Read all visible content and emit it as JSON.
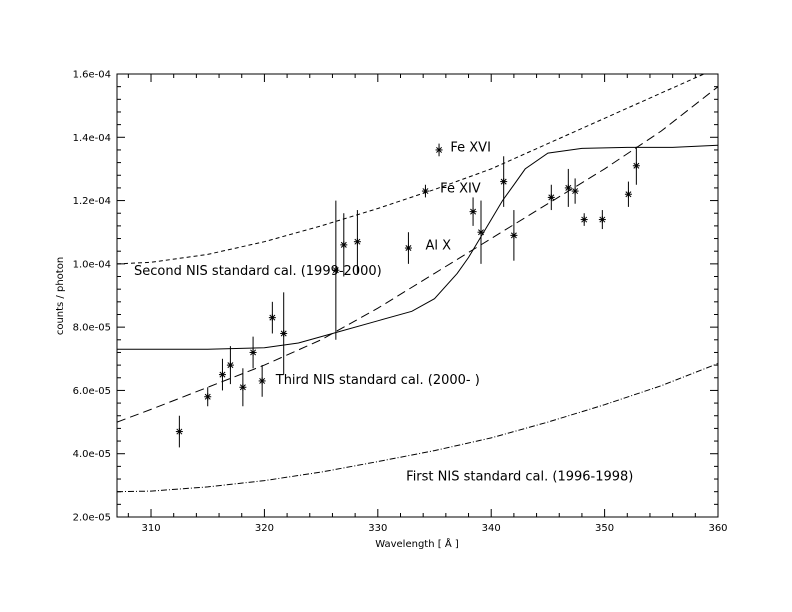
{
  "chart_data": {
    "type": "scatter",
    "xlabel": "Wavelength [ Å ]",
    "ylabel": "counts / photon",
    "xlim": [
      307,
      360
    ],
    "ylim": [
      2e-05,
      0.00016
    ],
    "xticks": [
      310,
      320,
      330,
      340,
      350,
      360
    ],
    "xtick_labels": [
      "310",
      "320",
      "330",
      "340",
      "350",
      "360"
    ],
    "yticks": [
      2e-05,
      4e-05,
      6e-05,
      8e-05,
      0.0001,
      0.00012,
      0.00014,
      0.00016
    ],
    "ytick_labels": [
      "2.0e-05",
      "4.0e-05",
      "6.0e-05",
      "8.0e-05",
      "1.0e-04",
      "1.2e-04",
      "1.4e-04",
      "1.6e-04"
    ],
    "grid": false,
    "measurements": [
      {
        "x": 312.5,
        "y": 4.7e-05,
        "err": 5e-06
      },
      {
        "x": 315.0,
        "y": 5.8e-05,
        "err": 3e-06
      },
      {
        "x": 316.3,
        "y": 6.5e-05,
        "err": 5e-06
      },
      {
        "x": 317.0,
        "y": 6.8e-05,
        "err": 6e-06
      },
      {
        "x": 318.1,
        "y": 6.1e-05,
        "err": 6e-06
      },
      {
        "x": 319.0,
        "y": 7.2e-05,
        "err": 5e-06
      },
      {
        "x": 319.8,
        "y": 6.3e-05,
        "err": 5e-06
      },
      {
        "x": 320.7,
        "y": 8.3e-05,
        "err": 5e-06
      },
      {
        "x": 321.7,
        "y": 7.8e-05,
        "err": 1.3e-05
      },
      {
        "x": 326.3,
        "y": 9.8e-05,
        "err": 2.2e-05
      },
      {
        "x": 327.0,
        "y": 0.000106,
        "err": 1e-05
      },
      {
        "x": 328.2,
        "y": 0.000107,
        "err": 1e-05
      },
      {
        "x": 332.7,
        "y": 0.000105,
        "err": 5e-06
      },
      {
        "x": 334.2,
        "y": 0.000123,
        "err": 2e-06
      },
      {
        "x": 335.4,
        "y": 0.000136,
        "err": 2e-06
      },
      {
        "x": 338.4,
        "y": 0.0001165,
        "err": 4.5e-06
      },
      {
        "x": 339.1,
        "y": 0.00011,
        "err": 1e-05
      },
      {
        "x": 341.1,
        "y": 0.000126,
        "err": 8e-06
      },
      {
        "x": 342.0,
        "y": 0.000109,
        "err": 8e-06
      },
      {
        "x": 345.3,
        "y": 0.000121,
        "err": 4e-06
      },
      {
        "x": 346.8,
        "y": 0.000124,
        "err": 6e-06
      },
      {
        "x": 347.4,
        "y": 0.000123,
        "err": 4e-06
      },
      {
        "x": 348.2,
        "y": 0.000114,
        "err": 2e-06
      },
      {
        "x": 349.8,
        "y": 0.000114,
        "err": 3e-06
      },
      {
        "x": 352.1,
        "y": 0.000122,
        "err": 4e-06
      },
      {
        "x": 352.8,
        "y": 0.000131,
        "err": 6e-06
      }
    ],
    "curves": [
      {
        "name": "Second NIS standard cal. (1999-2000)",
        "dash": "short-dash",
        "x": [
          307,
          310,
          315,
          320,
          325,
          330,
          335,
          340,
          345,
          350,
          355,
          360
        ],
        "y": [
          0.0001,
          0.0001005,
          0.000103,
          0.000107,
          0.000112,
          0.0001175,
          0.0001235,
          0.00013,
          0.000138,
          0.000146,
          0.000154,
          0.000162
        ]
      },
      {
        "name": "Third NIS standard cal. (2000- )",
        "dash": "long-dash",
        "x": [
          307,
          310,
          315,
          320,
          325,
          330,
          335,
          340,
          345,
          350,
          355,
          360
        ],
        "y": [
          5e-05,
          5.4e-05,
          6.1e-05,
          6.8e-05,
          7.6e-05,
          8.6e-05,
          9.7e-05,
          0.000108,
          0.000119,
          0.00013,
          0.000142,
          0.000156
        ]
      },
      {
        "name": "First NIS standard cal. (1996-1998)",
        "dash": "dash-dot",
        "x": [
          307,
          310,
          315,
          320,
          325,
          330,
          335,
          340,
          345,
          350,
          355,
          360
        ],
        "y": [
          2.8e-05,
          2.82e-05,
          2.95e-05,
          3.15e-05,
          3.42e-05,
          3.75e-05,
          4.1e-05,
          4.5e-05,
          5e-05,
          5.55e-05,
          6.15e-05,
          6.85e-05
        ]
      },
      {
        "name": "",
        "dash": "solid",
        "x": [
          307,
          315,
          320,
          323,
          326,
          330,
          333,
          335,
          337,
          338,
          339,
          340,
          341,
          342,
          343,
          345,
          348,
          352,
          356,
          360
        ],
        "y": [
          7.3e-05,
          7.3e-05,
          7.35e-05,
          7.5e-05,
          7.8e-05,
          8.2e-05,
          8.5e-05,
          8.9e-05,
          9.7e-05,
          0.000102,
          0.000108,
          0.000114,
          0.00012,
          0.000125,
          0.00013,
          0.000135,
          0.0001365,
          0.0001368,
          0.0001368,
          0.0001375
        ]
      }
    ],
    "annotations": [
      {
        "text": "Fe XVI",
        "x": 336.4,
        "y": 0.0001355
      },
      {
        "text": "Fe XIV",
        "x": 335.5,
        "y": 0.0001225
      },
      {
        "text": "Al X",
        "x": 334.2,
        "y": 0.0001045
      },
      {
        "text": "Second NIS standard cal. (1999-2000)",
        "x": 308.5,
        "y": 9.65e-05
      },
      {
        "text": "Third NIS standard cal. (2000- )",
        "x": 321.0,
        "y": 6.2e-05
      },
      {
        "text": "First NIS standard cal. (1996-1998)",
        "x": 332.5,
        "y": 3.15e-05
      }
    ]
  }
}
